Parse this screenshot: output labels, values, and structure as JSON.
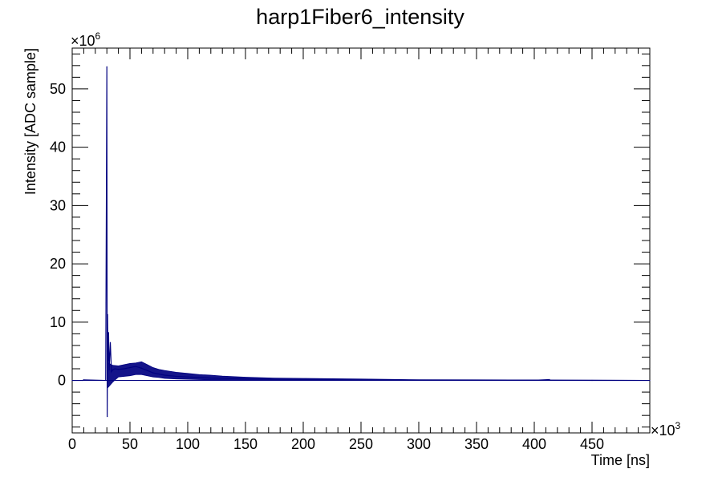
{
  "chart_data": {
    "type": "line",
    "title": "harp1Fiber6_intensity",
    "xlabel": "Time [ns]",
    "ylabel": "Intensity [ADC sample]",
    "x_multiplier": "×10",
    "x_multiplier_exp": "3",
    "y_multiplier": "×10",
    "y_multiplier_exp": "6",
    "xlim": [
      0,
      500
    ],
    "ylim": [
      -9,
      57
    ],
    "x_ticks": [
      0,
      50,
      100,
      150,
      200,
      250,
      300,
      350,
      400,
      450
    ],
    "x_tick_labels": [
      "0",
      "50",
      "100",
      "150",
      "200",
      "250",
      "300",
      "350",
      "400",
      "450"
    ],
    "y_ticks": [
      0,
      10,
      20,
      30,
      40,
      50
    ],
    "y_tick_labels": [
      "0",
      "10",
      "20",
      "30",
      "40",
      "50"
    ],
    "grid": false,
    "legend": "none",
    "colors": {
      "series": "#000080"
    },
    "series": [
      {
        "x": [
          0,
          9,
          10,
          29,
          30,
          30.3,
          30.6,
          31,
          31.5,
          32,
          33,
          34,
          35,
          37,
          40,
          45,
          50,
          55,
          60,
          65,
          70,
          80,
          90,
          100,
          120,
          150,
          200,
          250,
          300,
          350,
          400,
          413,
          414,
          450,
          500
        ],
        "y": [
          0,
          0,
          0.1,
          0,
          53.8,
          -6.2,
          11.3,
          3.0,
          8.2,
          1.8,
          6.5,
          1.5,
          1.8,
          2.0,
          1.9,
          2.0,
          2.2,
          2.4,
          2.1,
          1.7,
          1.3,
          0.9,
          0.7,
          0.6,
          0.4,
          0.25,
          0.15,
          0.1,
          0.06,
          0.05,
          0.03,
          0.15,
          0.02,
          0.01,
          0.0
        ],
        "noise_band": {
          "x": [
            31,
            35,
            40,
            45,
            50,
            55,
            60,
            65,
            70,
            75,
            80,
            90,
            100,
            110,
            120,
            130,
            150,
            175,
            200,
            225,
            250,
            300,
            350,
            400,
            450,
            500
          ],
          "lower": [
            -1.2,
            -0.3,
            0.6,
            0.7,
            0.8,
            1.0,
            1.0,
            0.8,
            0.6,
            0.5,
            0.35,
            0.25,
            0.2,
            0.15,
            0.1,
            0.08,
            0.05,
            0.03,
            0.02,
            0.02,
            0.01,
            0.0,
            0.0,
            0.0,
            0.0,
            0.0
          ],
          "upper": [
            3.0,
            2.6,
            2.5,
            2.7,
            2.9,
            3.0,
            3.2,
            2.7,
            2.2,
            1.9,
            1.7,
            1.4,
            1.2,
            1.0,
            0.9,
            0.75,
            0.55,
            0.4,
            0.35,
            0.3,
            0.25,
            0.12,
            0.1,
            0.08,
            0.05,
            0.02
          ]
        }
      }
    ]
  }
}
